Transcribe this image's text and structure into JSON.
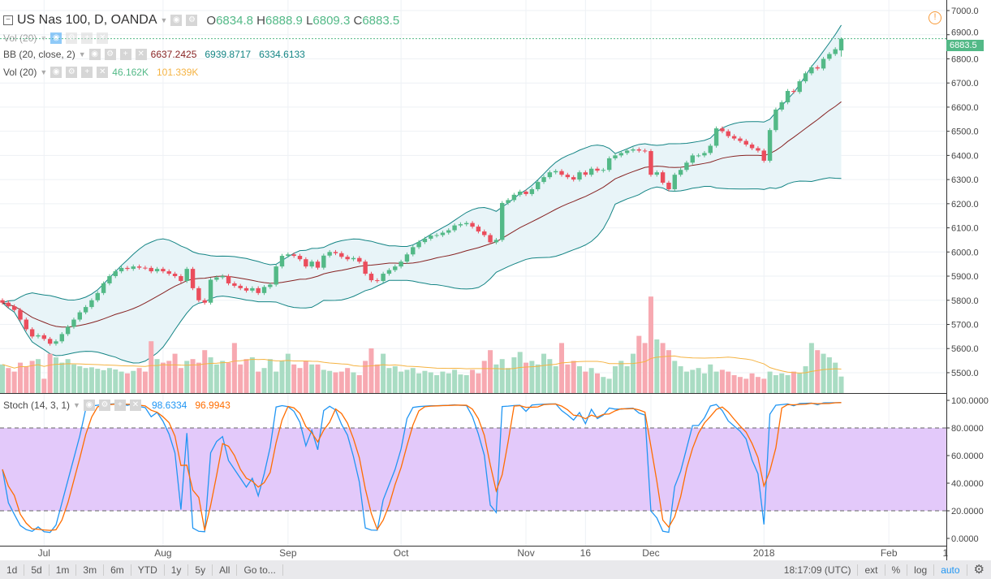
{
  "symbol": {
    "title": "US Nas 100, D, OANDA",
    "o_label": "O",
    "o": "6834.8",
    "h_label": "H",
    "h": "6888.9",
    "l_label": "L",
    "l": "6809.3",
    "c_label": "C",
    "c": "6883.5"
  },
  "indicators": {
    "vol_hidden": "Vol (20)",
    "bb": {
      "label": "BB (20, close, 2)",
      "basis": "6637.2425",
      "upper": "6939.8717",
      "lower": "6334.6133"
    },
    "vol": {
      "label": "Vol (20)",
      "value": "46.162K",
      "ma": "101.339K"
    },
    "stoch": {
      "label": "Stoch (14, 3, 1)",
      "k": "98.6334",
      "d": "96.9943"
    }
  },
  "price_label": "6883.5",
  "colors": {
    "up": "#53b987",
    "down": "#eb4d5c",
    "vol_up": "#a9dcc3",
    "vol_down": "#f7a9b1",
    "bb_band": "#138484",
    "bb_basis": "#872323",
    "bb_fill": "#e8f4f8",
    "vol_ma": "#f5b342",
    "stoch_k": "#2196f3",
    "stoch_d": "#ff6d00",
    "stoch_fill": "#e3c9fa"
  },
  "toolbar": {
    "ranges": [
      "1d",
      "5d",
      "1m",
      "3m",
      "6m",
      "YTD",
      "1y",
      "5y",
      "All",
      "Go to..."
    ],
    "time": "18:17:09 (UTC)",
    "ext": "ext",
    "pct": "%",
    "log": "log",
    "auto": "auto"
  },
  "chart_data": {
    "type": "candlestick",
    "price_ticks": [
      "7000.0",
      "6900.0",
      "6800.0",
      "6700.0",
      "6600.0",
      "6500.0",
      "6400.0",
      "6300.0",
      "6200.0",
      "6100.0",
      "6000.0",
      "5900.0",
      "5800.0",
      "5700.0",
      "5600.0",
      "5500.0"
    ],
    "ylim": [
      5485,
      7045
    ],
    "stoch_ticks": [
      "100.0000",
      "80.0000",
      "60.0000",
      "40.0000",
      "20.0000",
      "0.0000"
    ],
    "x_ticks": [
      {
        "label": "Jul",
        "bar": 7
      },
      {
        "label": "Aug",
        "bar": 27
      },
      {
        "label": "Sep",
        "bar": 48
      },
      {
        "label": "Oct",
        "bar": 67
      },
      {
        "label": "Nov",
        "bar": 88
      },
      {
        "label": "16",
        "bar": 98
      },
      {
        "label": "Dec",
        "bar": 109
      },
      {
        "label": "2018",
        "bar": 128
      },
      {
        "label": "Feb",
        "bar": 149
      },
      {
        "label": "1",
        "bar": 158.5
      }
    ],
    "last_bar": {
      "open": 6834.8,
      "high": 6888.9,
      "low": 6809.3,
      "close": 6883.5
    },
    "close": [
      5790,
      5775,
      5760,
      5720,
      5680,
      5650,
      5655,
      5640,
      5620,
      5630,
      5660,
      5690,
      5720,
      5750,
      5772,
      5800,
      5830,
      5870,
      5900,
      5920,
      5934,
      5930,
      5940,
      5935,
      5934,
      5920,
      5930,
      5920,
      5910,
      5900,
      5880,
      5930,
      5850,
      5800,
      5790,
      5885,
      5895,
      5900,
      5870,
      5860,
      5850,
      5840,
      5850,
      5830,
      5855,
      5865,
      5940,
      5984,
      5990,
      5984,
      5970,
      5940,
      5960,
      5935,
      5985,
      6000,
      5995,
      5980,
      5970,
      5975,
      5960,
      5910,
      5883,
      5880,
      5910,
      5925,
      5940,
      5960,
      5990,
      6020,
      6041,
      6055,
      6068,
      6070,
      6080,
      6090,
      6110,
      6115,
      6120,
      6105,
      6085,
      6070,
      6040,
      6050,
      6203,
      6215,
      6237,
      6250,
      6240,
      6260,
      6290,
      6310,
      6330,
      6335,
      6320,
      6310,
      6300,
      6330,
      6320,
      6345,
      6337,
      6340,
      6388,
      6400,
      6410,
      6420,
      6425,
      6420,
      6418,
      6320,
      6330,
      6287,
      6260,
      6320,
      6340,
      6370,
      6400,
      6400,
      6410,
      6440,
      6512,
      6500,
      6480,
      6470,
      6460,
      6445,
      6430,
      6420,
      6378,
      6505,
      6590,
      6620,
      6667,
      6663,
      6707,
      6740,
      6765,
      6760,
      6800,
      6820,
      6840,
      6883.5
    ],
    "volume_k": [
      80,
      70,
      60,
      85,
      75,
      90,
      95,
      40,
      110,
      100,
      85,
      95,
      80,
      75,
      70,
      72,
      68,
      64,
      70,
      66,
      60,
      55,
      62,
      70,
      60,
      145,
      95,
      85,
      90,
      110,
      70,
      90,
      95,
      85,
      120,
      100,
      80,
      90,
      85,
      140,
      80,
      95,
      100,
      60,
      70,
      95,
      60,
      90,
      110,
      80,
      70,
      90,
      80,
      80,
      65,
      62,
      58,
      60,
      70,
      58,
      50,
      90,
      125,
      80,
      110,
      70,
      75,
      60,
      65,
      70,
      55,
      62,
      58,
      50,
      60,
      55,
      65,
      52,
      50,
      65,
      55,
      90,
      120,
      80,
      95,
      70,
      100,
      115,
      85,
      90,
      80,
      110,
      95,
      75,
      140,
      80,
      90,
      75,
      60,
      70,
      55,
      45,
      40,
      75,
      90,
      75,
      110,
      160,
      140,
      270,
      150,
      140,
      120,
      90,
      75,
      60,
      65,
      70,
      55,
      80,
      60,
      65,
      60,
      50,
      45,
      40,
      55,
      45,
      40,
      60,
      50,
      55,
      50,
      60,
      55,
      75,
      140,
      120,
      110,
      100,
      85,
      46.162
    ]
  }
}
